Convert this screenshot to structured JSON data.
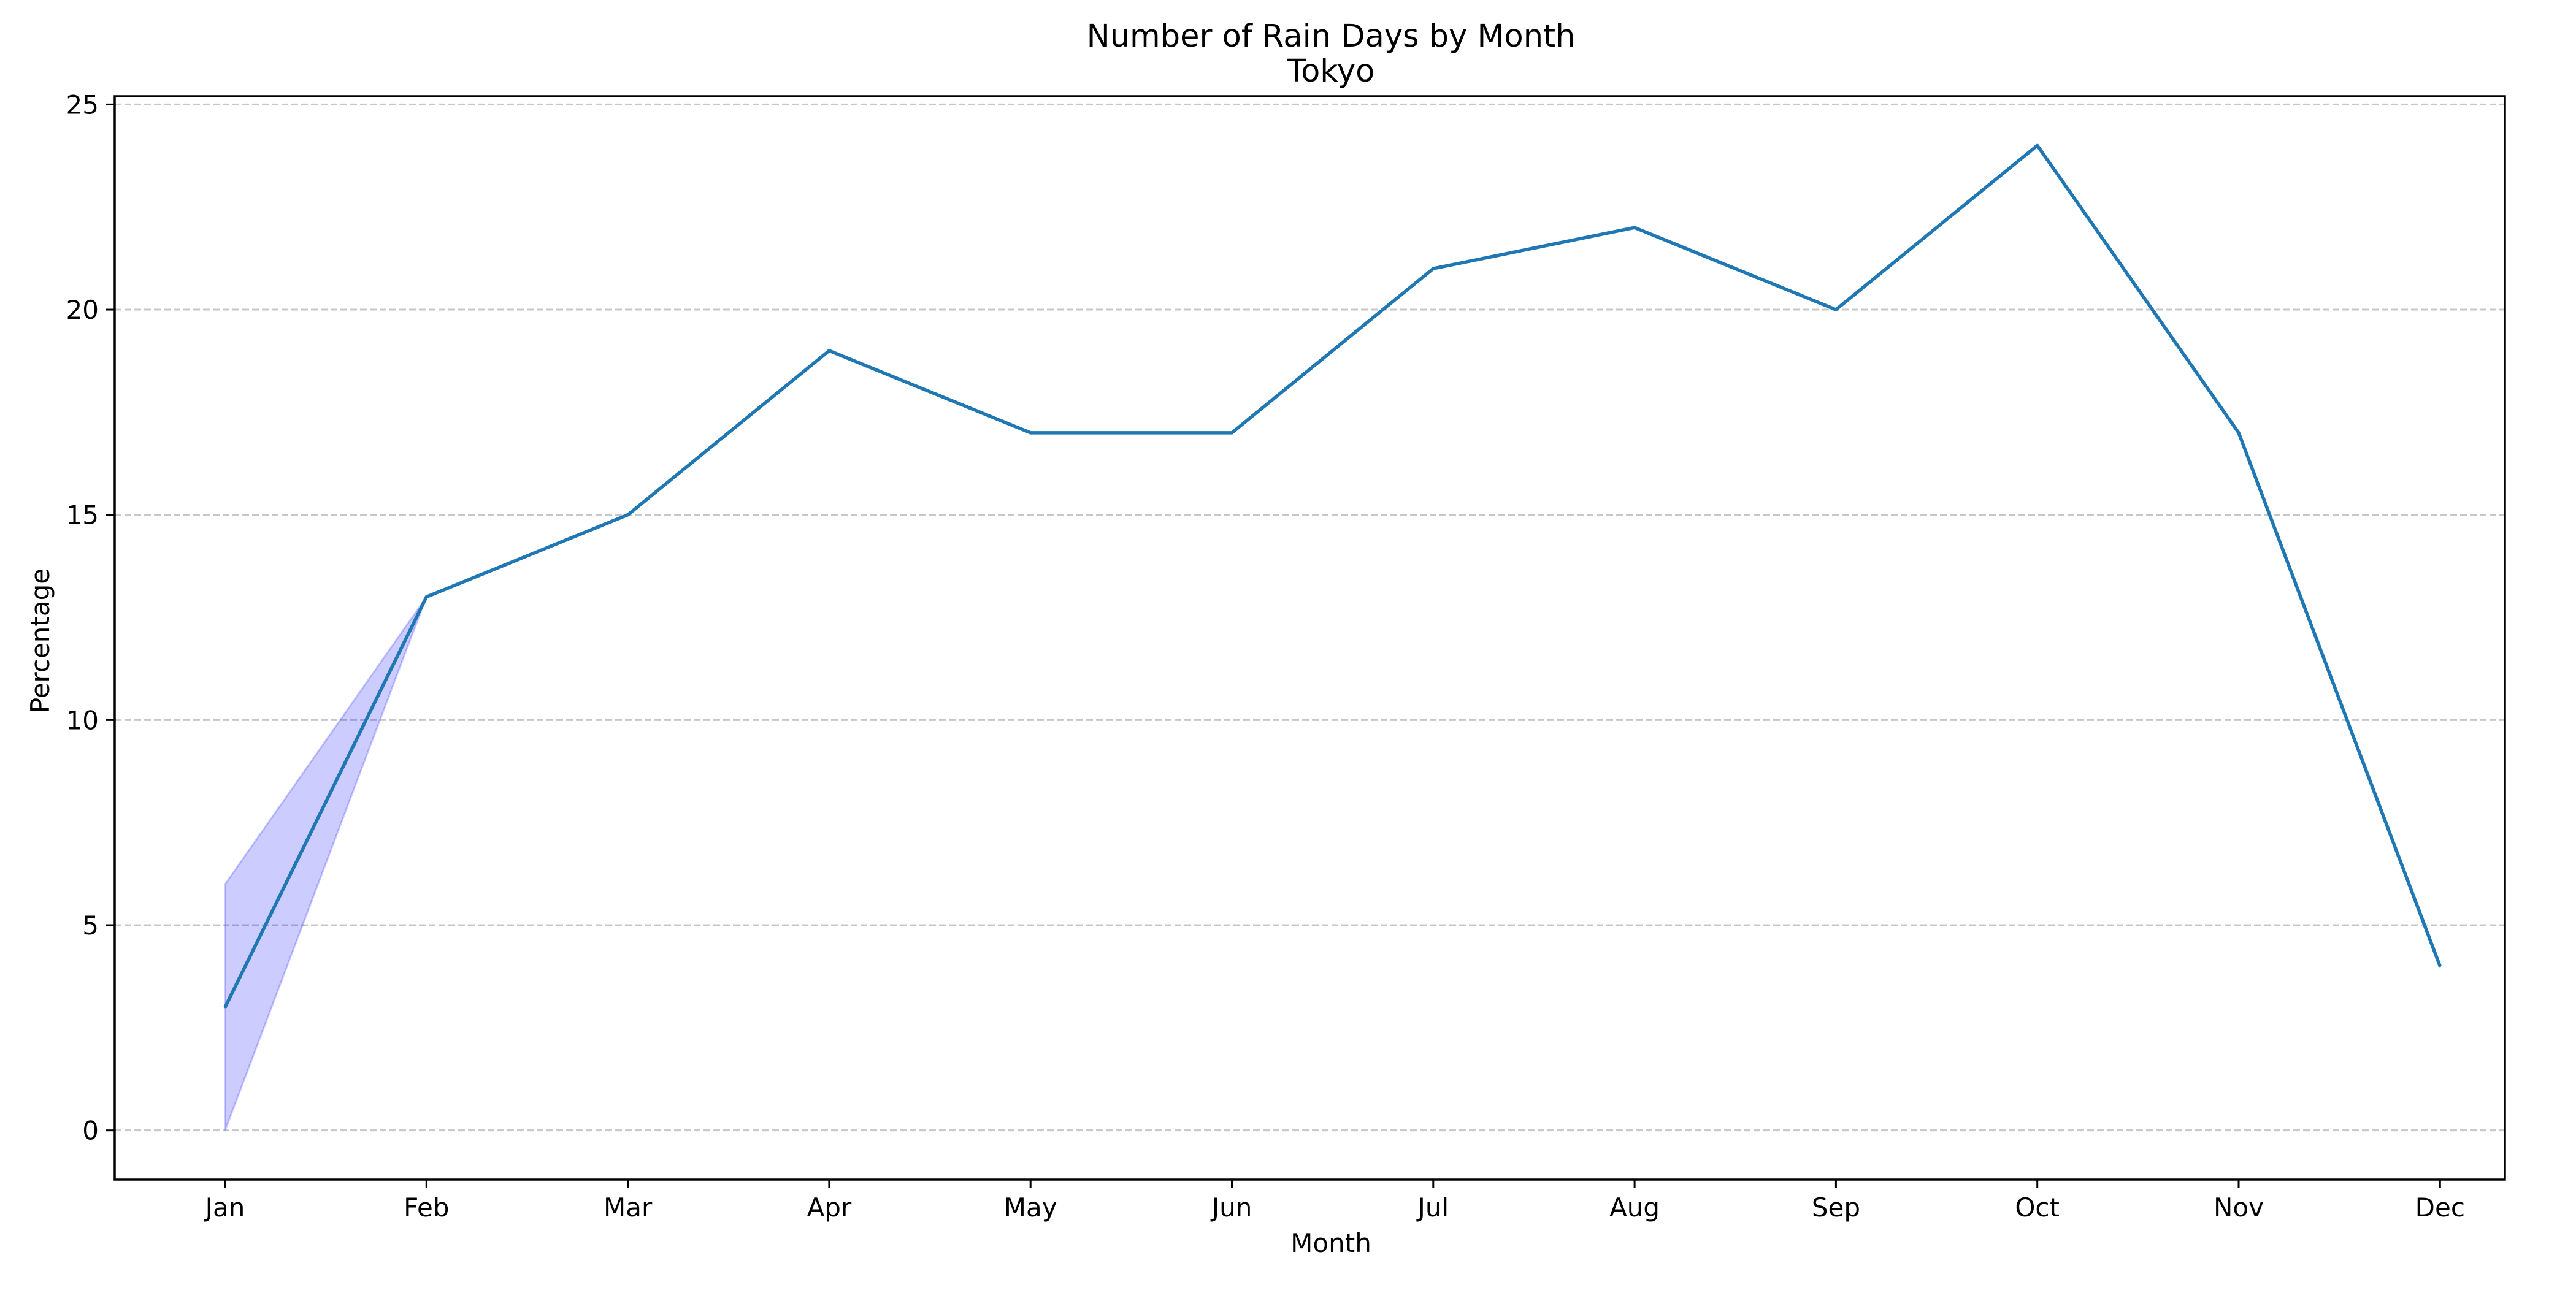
{
  "chart_data": {
    "type": "line",
    "title": "Number of Rain Days by Month",
    "subtitle": "Tokyo",
    "xlabel": "Month",
    "ylabel": "Percentage",
    "categories": [
      "Jan",
      "Feb",
      "Mar",
      "Apr",
      "May",
      "Jun",
      "Jul",
      "Aug",
      "Sep",
      "Oct",
      "Nov",
      "Dec"
    ],
    "series": [
      {
        "values": [
          3,
          13,
          15,
          19,
          17,
          17,
          21,
          22,
          20,
          24,
          17,
          4
        ],
        "color": "#1f77b4"
      }
    ],
    "band": {
      "categories": [
        "Jan",
        "Feb"
      ],
      "lower": [
        0,
        13
      ],
      "upper": [
        6,
        13
      ],
      "color": "#0000ff",
      "opacity": 0.2
    },
    "ylim": [
      -1.2,
      25.2
    ],
    "yticks": [
      0,
      5,
      10,
      15,
      20,
      25
    ],
    "grid": "y-dashed",
    "legend": "none"
  }
}
